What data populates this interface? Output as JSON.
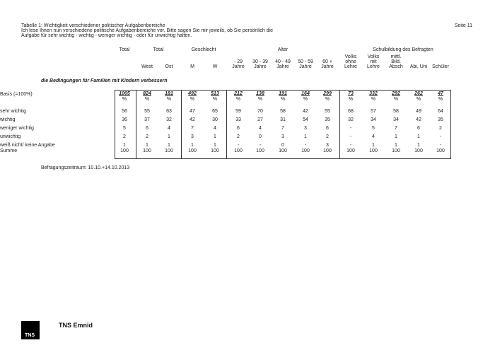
{
  "header": {
    "title_lines": [
      "Tabelle 1: Wichtigkeit verschiedener politischer Aufgabenbereiche",
      "Ich lese Ihnen nun verschiedene politische Aufgabenbereiche vor. Bitte sagen Sie mir jeweils, ob Sie persönlich die",
      "Aufgabe für sehr wichtig - wichtig - weniger wichtig - oder für unwichtig halten."
    ],
    "page": "Seite 11"
  },
  "table": {
    "groups": [
      "Total",
      "Total",
      "Geschlecht",
      "Alter",
      "Schulbildung des Befragten"
    ],
    "columns": [
      "",
      "West",
      "Ost",
      "M",
      "W",
      "- 29\nJahre",
      "30 - 39\nJahre",
      "40 - 49\nJahre",
      "50 - 59\nJahre",
      "60 +\nJahre",
      "Volks\nohne\nLehre",
      "Volks\nmit\nLehre",
      "mittl.\nBild.\nAbsch",
      "Abi, Uni",
      "Schüler"
    ],
    "section_title": "die Bedingungen für Familien mit Kindern verbessern",
    "basis_label": "Basis (=100%)",
    "basis": [
      "1005",
      "824",
      "181",
      "492",
      "513",
      "212",
      "138",
      "191",
      "164",
      "299",
      "73",
      "332",
      "292",
      "262",
      "47"
    ],
    "unit": "%",
    "rows": [
      {
        "label": "sehr wichtig",
        "values": [
          "56",
          "55",
          "63",
          "47",
          "65",
          "59",
          "70",
          "58",
          "42",
          "55",
          "68",
          "57",
          "58",
          "49",
          "64"
        ]
      },
      {
        "label": "wichtig",
        "values": [
          "36",
          "37",
          "32",
          "42",
          "30",
          "33",
          "27",
          "31",
          "54",
          "35",
          "32",
          "34",
          "34",
          "42",
          "35"
        ]
      },
      {
        "label": "weniger wichtig",
        "values": [
          "5",
          "6",
          "4",
          "7",
          "4",
          "6",
          "4",
          "7",
          "3",
          "6",
          "-",
          "5",
          "7",
          "6",
          "2"
        ]
      },
      {
        "label": "unwichtig",
        "values": [
          "2",
          "2",
          "1",
          "3",
          "1",
          "2",
          "0",
          "3",
          "1",
          "2",
          "-",
          "4",
          "1",
          "1",
          "-"
        ]
      },
      {
        "label": "weiß nicht/ keine Angabe",
        "values": [
          "1",
          "1",
          "1",
          "1",
          "1",
          "-",
          "-",
          "0",
          "-",
          "3",
          "-",
          "1",
          "1",
          "1",
          "-"
        ]
      }
    ],
    "sum": {
      "label": "Summe",
      "values": [
        "100",
        "100",
        "100",
        "100",
        "100",
        "100",
        "100",
        "100",
        "100",
        "100",
        "100",
        "100",
        "100",
        "100",
        "100"
      ]
    }
  },
  "footer": {
    "period": "Befragungszeitraum: 10.10.+14.10.2013",
    "brand": "TNS Emnid",
    "logo_text": "TNS"
  }
}
